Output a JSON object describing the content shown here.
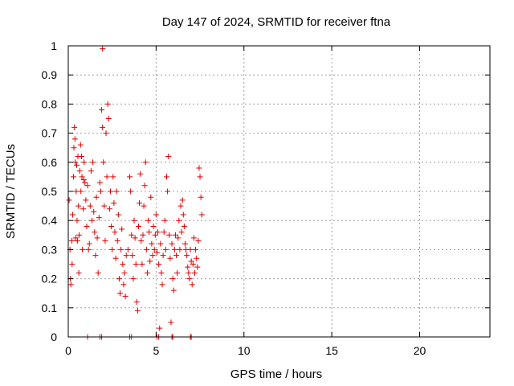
{
  "chart_data": {
    "type": "scatter",
    "title": "Day 147 of 2024, SRMTID for receiver ftna",
    "xlabel": "GPS time / hours",
    "ylabel": "SRMTID / TECUs",
    "xlim": [
      0,
      24
    ],
    "ylim": [
      0,
      1
    ],
    "x_ticks": [
      0,
      5,
      10,
      15,
      20
    ],
    "x_tick_labels": [
      "0",
      "5",
      "10",
      "15",
      "20"
    ],
    "y_ticks": [
      0,
      0.1,
      0.2,
      0.3,
      0.4,
      0.5,
      0.6,
      0.7,
      0.8,
      0.9,
      1
    ],
    "y_tick_labels": [
      "0",
      "0.1",
      "0.2",
      "0.3",
      "0.4",
      "0.5",
      "0.6",
      "0.7",
      "0.8",
      "0.9",
      "1"
    ],
    "grid": true,
    "marker": "plus",
    "marker_color": "#e00000",
    "grid_color": "#a0a0a0",
    "axis_color": "#000000",
    "series": [
      {
        "name": "SRMTID",
        "points": [
          [
            0.05,
            0.47
          ],
          [
            0.1,
            0.3
          ],
          [
            0.12,
            0.2
          ],
          [
            0.15,
            0.18
          ],
          [
            0.2,
            0.33
          ],
          [
            0.22,
            0.25
          ],
          [
            0.25,
            0.42
          ],
          [
            0.3,
            0.55
          ],
          [
            0.32,
            0.65
          ],
          [
            0.35,
            0.72
          ],
          [
            0.38,
            0.68
          ],
          [
            0.4,
            0.6
          ],
          [
            0.42,
            0.34
          ],
          [
            0.45,
            0.5
          ],
          [
            0.48,
            0.59
          ],
          [
            0.5,
            0.4
          ],
          [
            0.52,
            0.33
          ],
          [
            0.55,
            0.62
          ],
          [
            0.58,
            0.45
          ],
          [
            0.6,
            0.22
          ],
          [
            0.62,
            0.35
          ],
          [
            0.65,
            0.57
          ],
          [
            0.7,
            0.66
          ],
          [
            0.72,
            0.5
          ],
          [
            0.75,
            0.62
          ],
          [
            0.78,
            0.55
          ],
          [
            0.8,
            0.3
          ],
          [
            0.85,
            0.44
          ],
          [
            0.88,
            0.54
          ],
          [
            0.9,
            0.6
          ],
          [
            0.95,
            0.53
          ],
          [
            1.0,
            0.47
          ],
          [
            1.05,
            0.38
          ],
          [
            1.1,
            0.52
          ],
          [
            1.15,
            0.3
          ],
          [
            1.2,
            0.32
          ],
          [
            1.25,
            0.45
          ],
          [
            1.3,
            0.57
          ],
          [
            1.35,
            0.4
          ],
          [
            1.4,
            0.6
          ],
          [
            1.45,
            0.43
          ],
          [
            1.5,
            0.36
          ],
          [
            1.55,
            0.28
          ],
          [
            1.6,
            0.48
          ],
          [
            1.65,
            0.34
          ],
          [
            1.7,
            0.22
          ],
          [
            1.75,
            0.41
          ],
          [
            1.8,
            0.53
          ],
          [
            1.85,
            0.5
          ],
          [
            1.9,
            0.78
          ],
          [
            1.95,
            0.72
          ],
          [
            2.0,
            0.6
          ],
          [
            2.05,
            0.45
          ],
          [
            2.1,
            0.33
          ],
          [
            2.15,
            0.7
          ],
          [
            2.2,
            0.55
          ],
          [
            2.25,
            0.8
          ],
          [
            2.3,
            0.75
          ],
          [
            2.35,
            0.44
          ],
          [
            2.4,
            0.5
          ],
          [
            2.45,
            0.38
          ],
          [
            2.5,
            0.3
          ],
          [
            2.55,
            0.55
          ],
          [
            2.6,
            0.46
          ],
          [
            2.65,
            0.36
          ],
          [
            2.7,
            0.27
          ],
          [
            2.75,
            0.5
          ],
          [
            2.8,
            0.33
          ],
          [
            2.85,
            0.42
          ],
          [
            2.9,
            0.2
          ],
          [
            2.95,
            0.15
          ],
          [
            3.0,
            0.3
          ],
          [
            3.05,
            0.37
          ],
          [
            3.1,
            0.25
          ],
          [
            3.15,
            0.18
          ],
          [
            3.2,
            0.22
          ],
          [
            3.25,
            0.14
          ],
          [
            3.3,
            0.28
          ],
          [
            3.4,
            0.3
          ],
          [
            3.5,
            0.55
          ],
          [
            3.55,
            0.5
          ],
          [
            3.6,
            0.35
          ],
          [
            3.65,
            0.28
          ],
          [
            3.7,
            0.2
          ],
          [
            3.75,
            0.4
          ],
          [
            3.8,
            0.34
          ],
          [
            3.85,
            0.25
          ],
          [
            3.9,
            0.12
          ],
          [
            3.95,
            0.09
          ],
          [
            4.0,
            0.38
          ],
          [
            4.05,
            0.46
          ],
          [
            4.1,
            0.56
          ],
          [
            4.15,
            0.33
          ],
          [
            4.2,
            0.25
          ],
          [
            4.25,
            0.35
          ],
          [
            4.3,
            0.45
          ],
          [
            4.35,
            0.52
          ],
          [
            4.4,
            0.6
          ],
          [
            4.45,
            0.3
          ],
          [
            4.5,
            0.22
          ],
          [
            4.55,
            0.4
          ],
          [
            4.6,
            0.36
          ],
          [
            4.65,
            0.26
          ],
          [
            4.7,
            0.48
          ],
          [
            4.75,
            0.32
          ],
          [
            4.8,
            0.28
          ],
          [
            4.85,
            0.38
          ],
          [
            4.9,
            0.3
          ],
          [
            4.95,
            0.35
          ],
          [
            5.0,
            0.42
          ],
          [
            5.05,
            0.29
          ],
          [
            5.1,
            0.36
          ],
          [
            5.15,
            0.25
          ],
          [
            5.2,
            0.03
          ],
          [
            5.25,
            0.32
          ],
          [
            5.3,
            0.22
          ],
          [
            5.35,
            0.18
          ],
          [
            5.4,
            0.28
          ],
          [
            5.45,
            0.36
          ],
          [
            5.5,
            0.4
          ],
          [
            5.55,
            0.3
          ],
          [
            5.6,
            0.55
          ],
          [
            5.65,
            0.5
          ],
          [
            5.7,
            0.62
          ],
          [
            5.75,
            0.35
          ],
          [
            5.8,
            0.27
          ],
          [
            5.85,
            0.05
          ],
          [
            5.9,
            0.32
          ],
          [
            5.95,
            0.2
          ],
          [
            6.0,
            0.16
          ],
          [
            6.05,
            0.3
          ],
          [
            6.1,
            0.35
          ],
          [
            6.15,
            0.28
          ],
          [
            6.2,
            0.22
          ],
          [
            6.25,
            0.34
          ],
          [
            6.3,
            0.4
          ],
          [
            6.35,
            0.3
          ],
          [
            6.4,
            0.45
          ],
          [
            6.45,
            0.36
          ],
          [
            6.5,
            0.47
          ],
          [
            6.55,
            0.42
          ],
          [
            6.6,
            0.38
          ],
          [
            6.65,
            0.32
          ],
          [
            6.7,
            0.3
          ],
          [
            6.75,
            0.28
          ],
          [
            6.8,
            0.24
          ],
          [
            6.85,
            0.22
          ],
          [
            6.9,
            0.2
          ],
          [
            6.95,
            0.3
          ],
          [
            7.0,
            0.26
          ],
          [
            7.05,
            0.18
          ],
          [
            7.1,
            0.25
          ],
          [
            7.15,
            0.34
          ],
          [
            7.2,
            0.22
          ],
          [
            7.25,
            0.3
          ],
          [
            7.3,
            0.27
          ],
          [
            7.35,
            0.24
          ],
          [
            7.4,
            0.33
          ],
          [
            7.45,
            0.58
          ],
          [
            7.5,
            0.55
          ],
          [
            7.55,
            0.48
          ],
          [
            7.6,
            0.42
          ],
          [
            1.1,
            0.0
          ],
          [
            1.8,
            0.0
          ],
          [
            1.9,
            0.0
          ],
          [
            3.5,
            0.0
          ],
          [
            3.6,
            0.0
          ],
          [
            5.05,
            0.0
          ],
          [
            5.15,
            0.0
          ],
          [
            5.9,
            0.0
          ],
          [
            5.95,
            0.0
          ],
          [
            6.95,
            0.0
          ],
          [
            7.0,
            0.0
          ],
          [
            1.95,
            0.99
          ]
        ]
      }
    ]
  }
}
